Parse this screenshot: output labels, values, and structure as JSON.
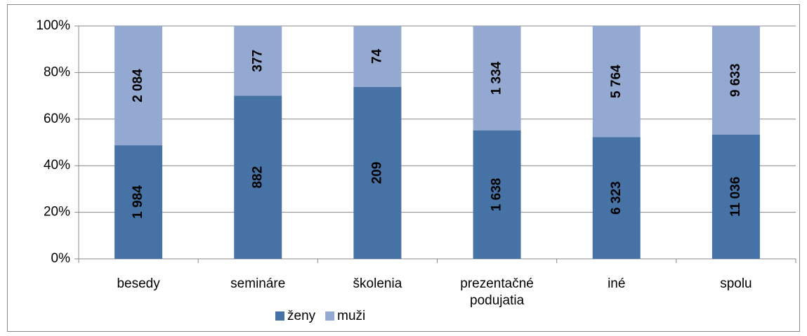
{
  "chart_data": {
    "type": "stacked_bar_100",
    "categories": [
      "besedy",
      "semináre",
      "školenia",
      "prezentačné podujatia",
      "iné",
      "spolu"
    ],
    "series": [
      {
        "name": "ženy",
        "color": "#4672a6",
        "values": [
          1984,
          882,
          209,
          1638,
          6323,
          11036
        ],
        "value_labels": [
          "1 984",
          "882",
          "209",
          "1 638",
          "6 323",
          "11 036"
        ]
      },
      {
        "name": "muži",
        "color": "#94a9d2",
        "values": [
          2084,
          377,
          74,
          1334,
          5764,
          9633
        ],
        "value_labels": [
          "2 084",
          "377",
          "74",
          "1 334",
          "5 764",
          "9 633"
        ]
      }
    ],
    "ylim": [
      0,
      100
    ],
    "yticks": [
      {
        "value": 0,
        "label": "0%"
      },
      {
        "value": 20,
        "label": "20%"
      },
      {
        "value": 40,
        "label": "40%"
      },
      {
        "value": 60,
        "label": "60%"
      },
      {
        "value": 80,
        "label": "80%"
      },
      {
        "value": 100,
        "label": "100%"
      }
    ],
    "grid": true,
    "legend": "bottom"
  }
}
